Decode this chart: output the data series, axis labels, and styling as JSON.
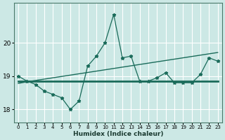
{
  "xlabel": "Humidex (Indice chaleur)",
  "ylabel": "",
  "bg_color": "#cce8e5",
  "grid_color": "#ffffff",
  "line_color": "#1a6b5a",
  "xlim": [
    -0.5,
    23.5
  ],
  "ylim": [
    17.6,
    21.2
  ],
  "yticks": [
    18,
    19,
    20
  ],
  "xticks": [
    0,
    1,
    2,
    3,
    4,
    5,
    6,
    7,
    8,
    9,
    10,
    11,
    12,
    13,
    14,
    15,
    16,
    17,
    18,
    19,
    20,
    21,
    22,
    23
  ],
  "main_y": [
    19.0,
    18.85,
    18.75,
    18.55,
    18.45,
    18.35,
    18.0,
    18.25,
    19.3,
    19.6,
    20.0,
    20.85,
    19.55,
    19.6,
    18.85,
    18.85,
    18.95,
    19.1,
    18.8,
    18.8,
    18.8,
    19.05,
    19.55,
    19.45
  ],
  "flat_y": [
    18.85,
    18.85,
    18.85,
    18.85,
    18.85,
    18.85,
    18.85,
    18.85,
    18.85,
    18.85,
    18.85,
    18.85,
    18.85,
    18.85,
    18.85,
    18.85,
    18.85,
    18.85,
    18.85,
    18.85,
    18.85,
    18.85,
    18.85,
    18.85
  ],
  "trend_y": [
    18.78,
    18.83,
    18.87,
    18.91,
    18.95,
    18.99,
    19.03,
    19.07,
    19.11,
    19.15,
    19.19,
    19.23,
    19.27,
    19.31,
    19.35,
    19.39,
    19.43,
    19.47,
    19.51,
    19.55,
    19.59,
    19.63,
    19.67,
    19.71
  ]
}
